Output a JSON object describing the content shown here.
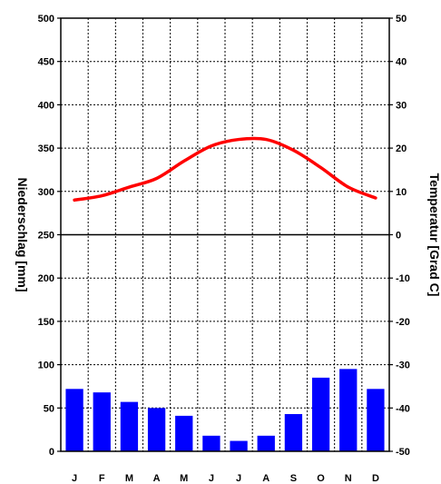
{
  "chart_data": {
    "type": "bar+line",
    "categories": [
      "J",
      "F",
      "M",
      "A",
      "M",
      "J",
      "J",
      "A",
      "S",
      "O",
      "N",
      "D"
    ],
    "precipitation": {
      "type": "bar",
      "values": [
        72,
        68,
        57,
        50,
        41,
        18,
        12,
        18,
        43,
        85,
        95,
        72
      ],
      "color": "#0000ff",
      "axis": "left"
    },
    "temperature": {
      "type": "line",
      "values": [
        8,
        9,
        11,
        13,
        17,
        20.5,
        22,
        22,
        19.5,
        15.5,
        11,
        8.5
      ],
      "color": "#ff0000",
      "axis": "right"
    },
    "ylabel_left": "Niederschlag [mm]",
    "ylabel_right": "Temperatur [Grad C]",
    "ylim_left": [
      0,
      500
    ],
    "ylim_right": [
      -50,
      50
    ],
    "yticks_left": [
      "0",
      "50",
      "100",
      "150",
      "200",
      "250",
      "300",
      "350",
      "400",
      "450",
      "500"
    ],
    "yticks_right": [
      "-50",
      "-40",
      "-30",
      "-20",
      "-10",
      "0",
      "10",
      "20",
      "30",
      "40",
      "50"
    ],
    "grid": true
  }
}
